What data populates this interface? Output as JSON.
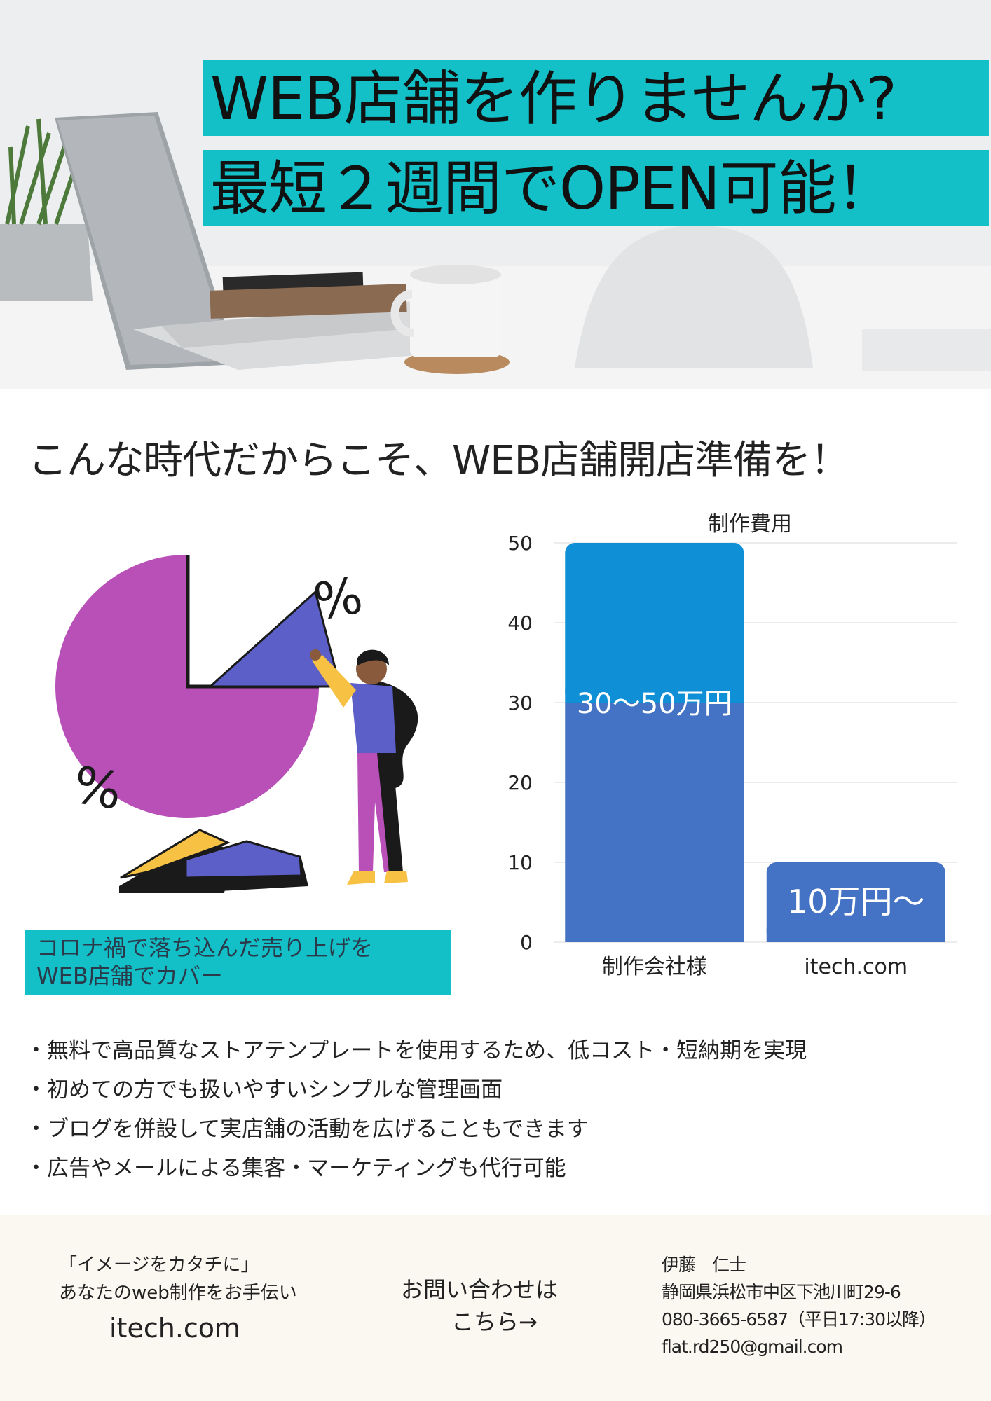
{
  "hero": {
    "line1": "WEB店舗を作りませんか?",
    "line2": "最短２週間でOPEN可能！"
  },
  "subheading": "こんな時代だからこそ、WEB店舗開店準備を！",
  "illustration": {
    "percent_symbol_1": "%",
    "percent_symbol_2": "%"
  },
  "caption": {
    "line1": "コロナ禍で落ち込んだ売り上げを",
    "line2": "WEB店舗でカバー"
  },
  "chart_data": {
    "type": "bar",
    "title": "制作費用",
    "categories": [
      "制作会社様",
      "itech.com"
    ],
    "ylim": [
      0,
      50
    ],
    "yticks": [
      0,
      10,
      20,
      30,
      40,
      50
    ],
    "grid": true,
    "series": [
      {
        "values": [
          30,
          10
        ],
        "color": "#4472c4"
      },
      {
        "values": [
          20,
          0
        ],
        "color": "#0f8fd6"
      }
    ],
    "annotations": [
      "30〜50万円",
      "10万円〜"
    ]
  },
  "bullets": [
    "・無料で高品質なストアテンプレートを使用するため、低コスト・短納期を実現",
    "・初めての方でも扱いやすいシンプルな管理画面",
    "・ブログを併設して実店舗の活動を広げることもできます",
    "・広告やメールによる集客・マーケティングも代行可能"
  ],
  "footer": {
    "tagline1": "「イメージをカタチに」",
    "tagline2": "あなたのweb制作をお手伝い",
    "site": "itech.com",
    "contact1": "お問い合わせは",
    "contact2": "こちら→",
    "name": "伊藤　仁士",
    "address": "静岡県浜松市中区下池川町29-6",
    "phone": "080-3665-6587（平日17:30以降）",
    "email": "flat.rd250@gmail.com"
  },
  "colors": {
    "accent": "#13c0c8",
    "bar_primary": "#4472c4",
    "bar_top": "#0f8fd6",
    "pie_purple": "#b850b8",
    "wedge_blue": "#5b5fc7",
    "yellow": "#f7c244"
  }
}
